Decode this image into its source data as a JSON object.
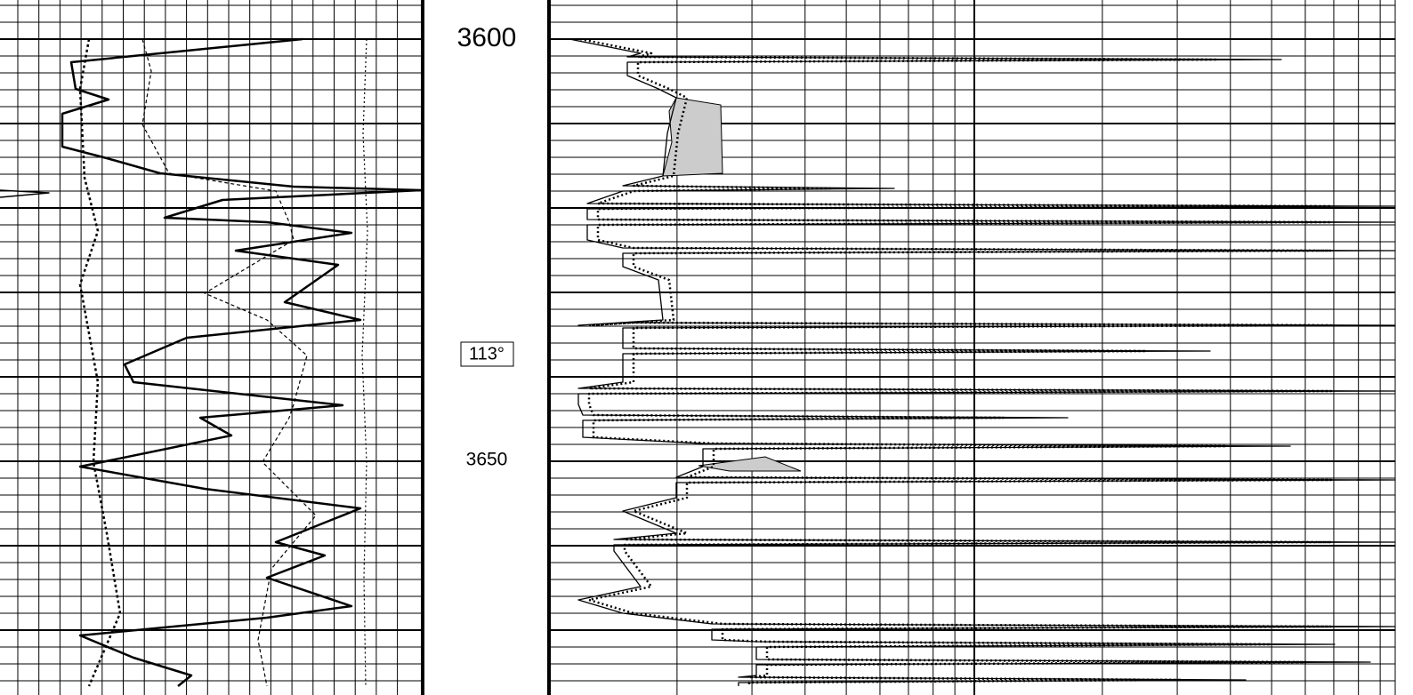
{
  "depth_track": {
    "top_depth": "3600",
    "annotation": "113°",
    "mid_depth": "3650"
  }
}
